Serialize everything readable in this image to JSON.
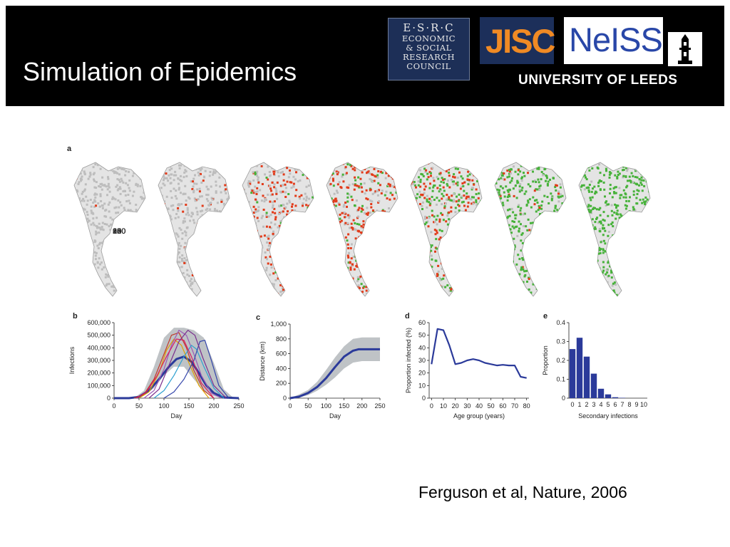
{
  "slide": {
    "title": "Simulation of Epidemics",
    "citation": "Ferguson et al, Nature, 2006"
  },
  "logos": {
    "esrc": {
      "line1": "E·S·R·C",
      "line2": "ECONOMIC",
      "line3": "& SOCIAL",
      "line4": "RESEARCH",
      "line5": "COUNCIL"
    },
    "jisc": "JISC",
    "neiss": "NeISS",
    "leeds": "UNIVERSITY OF LEEDS"
  },
  "colors": {
    "header_bg": "#000000",
    "uninfected": "#bdbdbd",
    "infected": "#e23b1a",
    "recovered": "#47b23a",
    "series": "#2b3a9a",
    "band": "#bfc3c6"
  },
  "panel_a": {
    "label": "a",
    "days": [
      "30",
      "60",
      "90",
      "120",
      "150",
      "180",
      "240"
    ],
    "mix": [
      {
        "red": 0.01,
        "green": 0.0
      },
      {
        "red": 0.08,
        "green": 0.0
      },
      {
        "red": 0.35,
        "green": 0.05
      },
      {
        "red": 0.6,
        "green": 0.12
      },
      {
        "red": 0.35,
        "green": 0.45
      },
      {
        "red": 0.1,
        "green": 0.82
      },
      {
        "red": 0.0,
        "green": 0.92
      }
    ]
  },
  "chart_data": [
    {
      "panel": "b",
      "type": "line",
      "xlabel": "Day",
      "ylabel": "Infections",
      "xlim": [
        0,
        250
      ],
      "ylim": [
        0,
        600000
      ],
      "xticks": [
        "0",
        "50",
        "100",
        "150",
        "200",
        "250"
      ],
      "yticks": [
        "0",
        "100,000",
        "200,000",
        "300,000",
        "400,000",
        "500,000",
        "600,000"
      ],
      "band": {
        "x": [
          40,
          60,
          80,
          100,
          120,
          140,
          160,
          180,
          200,
          220,
          240
        ],
        "lower": [
          0,
          20000,
          80000,
          180000,
          250000,
          250000,
          150000,
          60000,
          15000,
          0,
          0
        ],
        "upper": [
          0,
          60000,
          250000,
          480000,
          560000,
          560000,
          540000,
          480000,
          280000,
          70000,
          0
        ]
      },
      "series": [
        {
          "color": "#2b3a9a",
          "width": 3,
          "x": [
            0,
            30,
            50,
            70,
            90,
            110,
            125,
            140,
            155,
            170,
            185,
            200,
            220,
            250
          ],
          "y": [
            0,
            0,
            10000,
            60000,
            150000,
            250000,
            310000,
            330000,
            290000,
            200000,
            100000,
            40000,
            5000,
            0
          ]
        },
        {
          "color": "#c0392b",
          "width": 1.2,
          "x": [
            40,
            60,
            80,
            100,
            115,
            130,
            145,
            160,
            180,
            200
          ],
          "y": [
            0,
            30000,
            150000,
            350000,
            500000,
            520000,
            400000,
            220000,
            60000,
            0
          ]
        },
        {
          "color": "#e0a000",
          "width": 1.2,
          "x": [
            50,
            70,
            90,
            105,
            120,
            135,
            150,
            170,
            190
          ],
          "y": [
            0,
            50000,
            200000,
            380000,
            470000,
            420000,
            280000,
            100000,
            0
          ]
        },
        {
          "color": "#9b59b6",
          "width": 1.2,
          "x": [
            60,
            80,
            100,
            115,
            130,
            145,
            160,
            175,
            195,
            215
          ],
          "y": [
            0,
            60000,
            230000,
            420000,
            540000,
            500000,
            350000,
            180000,
            40000,
            0
          ]
        },
        {
          "color": "#2ea0d0",
          "width": 1.2,
          "x": [
            80,
            100,
            120,
            140,
            155,
            165,
            180,
            200,
            220
          ],
          "y": [
            0,
            60000,
            180000,
            330000,
            420000,
            390000,
            250000,
            80000,
            0
          ]
        },
        {
          "color": "#3344aa",
          "width": 1.2,
          "x": [
            100,
            120,
            140,
            160,
            172,
            182,
            195,
            210,
            230
          ],
          "y": [
            0,
            50000,
            150000,
            300000,
            450000,
            460000,
            300000,
            100000,
            0
          ]
        },
        {
          "color": "#d81b60",
          "width": 1.2,
          "x": [
            45,
            65,
            85,
            105,
            125,
            140,
            155,
            175,
            200
          ],
          "y": [
            0,
            50000,
            170000,
            330000,
            470000,
            460000,
            330000,
            120000,
            0
          ]
        },
        {
          "color": "#7b2d8e",
          "width": 1.2,
          "x": [
            70,
            90,
            110,
            130,
            148,
            162,
            178,
            200,
            225
          ],
          "y": [
            0,
            70000,
            260000,
            450000,
            540000,
            500000,
            320000,
            100000,
            0
          ]
        }
      ]
    },
    {
      "panel": "c",
      "type": "line",
      "xlabel": "Day",
      "ylabel": "Distance (km)",
      "xlim": [
        0,
        250
      ],
      "ylim": [
        0,
        1000
      ],
      "xticks": [
        "0",
        "50",
        "100",
        "150",
        "200",
        "250"
      ],
      "yticks": [
        "0",
        "200",
        "400",
        "600",
        "800",
        "1,000"
      ],
      "band": {
        "x": [
          0,
          25,
          50,
          75,
          100,
          125,
          150,
          175,
          200,
          225,
          250
        ],
        "lower": [
          0,
          10,
          40,
          100,
          180,
          280,
          400,
          480,
          500,
          500,
          500
        ],
        "upper": [
          0,
          50,
          110,
          220,
          380,
          550,
          700,
          800,
          820,
          820,
          820
        ]
      },
      "series": [
        {
          "color": "#2b3a9a",
          "width": 3,
          "x": [
            0,
            25,
            50,
            75,
            100,
            125,
            150,
            175,
            190,
            200,
            250
          ],
          "y": [
            0,
            20,
            70,
            150,
            270,
            420,
            560,
            640,
            660,
            660,
            660
          ]
        }
      ]
    },
    {
      "panel": "d",
      "type": "line",
      "xlabel": "Age group (years)",
      "ylabel": "Proportion infected (%)",
      "xlim": [
        -2,
        82
      ],
      "ylim": [
        0,
        60
      ],
      "xticks": [
        "0",
        "10",
        "20",
        "30",
        "40",
        "50",
        "60",
        "70",
        "80"
      ],
      "yticks": [
        "0",
        "10",
        "20",
        "30",
        "40",
        "50",
        "60"
      ],
      "series": [
        {
          "color": "#2b3a9a",
          "width": 2.2,
          "x": [
            0,
            5,
            10,
            15,
            20,
            25,
            30,
            35,
            40,
            45,
            50,
            55,
            60,
            65,
            70,
            75,
            80
          ],
          "y": [
            27,
            55,
            54,
            42,
            27,
            28,
            30,
            31,
            30,
            28,
            27,
            26,
            26.5,
            26,
            26,
            17,
            16
          ]
        }
      ]
    },
    {
      "panel": "e",
      "type": "bar",
      "xlabel": "Secondary infections",
      "ylabel": "Proportion",
      "ylim": [
        0,
        0.4
      ],
      "categories": [
        "0",
        "1",
        "2",
        "3",
        "4",
        "5",
        "6",
        "7",
        "8",
        "9",
        "10"
      ],
      "yticks": [
        "0",
        "0.1",
        "0.2",
        "0.3",
        "0.4"
      ],
      "values": [
        0.26,
        0.32,
        0.22,
        0.13,
        0.05,
        0.02,
        0.005,
        0.002,
        0,
        0,
        0
      ]
    }
  ]
}
